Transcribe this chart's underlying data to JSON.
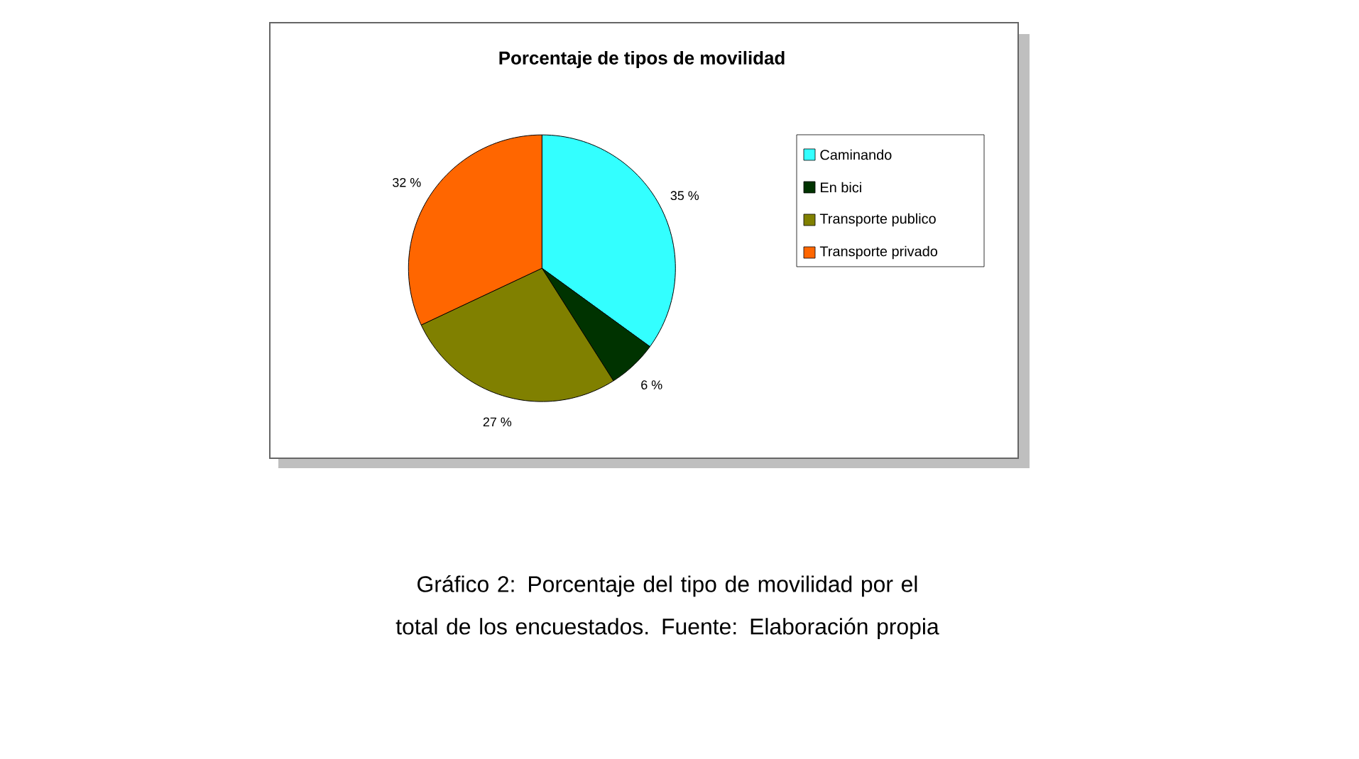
{
  "chart_data": {
    "type": "pie",
    "title": "Porcentaje de tipos de movilidad",
    "categories": [
      "Caminando",
      "En bici",
      "Transporte publico",
      "Transporte privado"
    ],
    "values": [
      35,
      6,
      27,
      32
    ],
    "colors": [
      "#33ffff",
      "#003300",
      "#808000",
      "#ff6600"
    ],
    "value_labels": [
      "35 %",
      "6 %",
      "27 %",
      "32 %"
    ],
    "legend": "right",
    "annotations": [
      "Gráfico 2: Porcentaje del tipo de movilidad por el total de los encuestados. Fuente: Elaboración propia"
    ]
  }
}
